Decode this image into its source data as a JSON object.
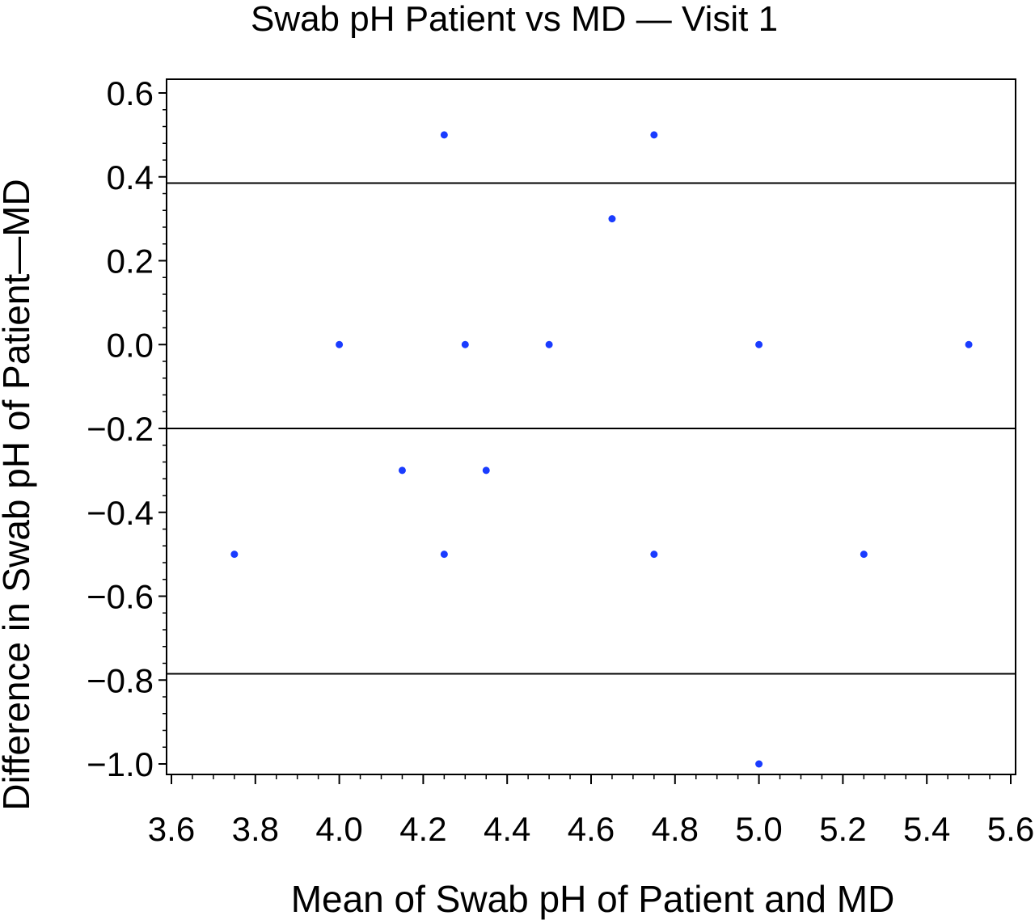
{
  "chart_data": {
    "type": "scatter",
    "title": "Swab pH Patient vs MD — Visit 1",
    "xlabel": "Mean of Swab pH of Patient and MD",
    "ylabel": "Difference in Swab pH of Patient—MD",
    "xlim": [
      3.6,
      5.6
    ],
    "ylim": [
      -1.0,
      0.6
    ],
    "x_ticks": [
      3.6,
      3.8,
      4.0,
      4.2,
      4.4,
      4.6,
      4.8,
      5.0,
      5.2,
      5.4,
      5.6
    ],
    "x_tick_labels": [
      "3.6",
      "3.8",
      "4.0",
      "4.2",
      "4.4",
      "4.6",
      "4.8",
      "5.0",
      "5.2",
      "5.4",
      "5.6"
    ],
    "y_ticks": [
      -1.0,
      -0.8,
      -0.6,
      -0.4,
      -0.2,
      0.0,
      0.2,
      0.4,
      0.6
    ],
    "y_tick_labels": [
      "−1.0",
      "−0.8",
      "−0.6",
      "−0.4",
      "−0.2",
      "0.0",
      "0.2",
      "0.4",
      "0.6"
    ],
    "reference_lines_y": [
      0.385,
      -0.2,
      -0.785
    ],
    "grid": false,
    "point_color": "#1a3cff",
    "points": [
      {
        "x": 3.75,
        "y": -0.5
      },
      {
        "x": 4.0,
        "y": 0.0
      },
      {
        "x": 4.15,
        "y": -0.3
      },
      {
        "x": 4.25,
        "y": 0.5
      },
      {
        "x": 4.25,
        "y": -0.5
      },
      {
        "x": 4.3,
        "y": 0.0
      },
      {
        "x": 4.35,
        "y": -0.3
      },
      {
        "x": 4.5,
        "y": 0.0
      },
      {
        "x": 4.65,
        "y": 0.3
      },
      {
        "x": 4.75,
        "y": 0.5
      },
      {
        "x": 4.75,
        "y": -0.5
      },
      {
        "x": 5.0,
        "y": 0.0
      },
      {
        "x": 5.0,
        "y": -1.0
      },
      {
        "x": 5.25,
        "y": -0.5
      },
      {
        "x": 5.5,
        "y": 0.0
      }
    ]
  }
}
